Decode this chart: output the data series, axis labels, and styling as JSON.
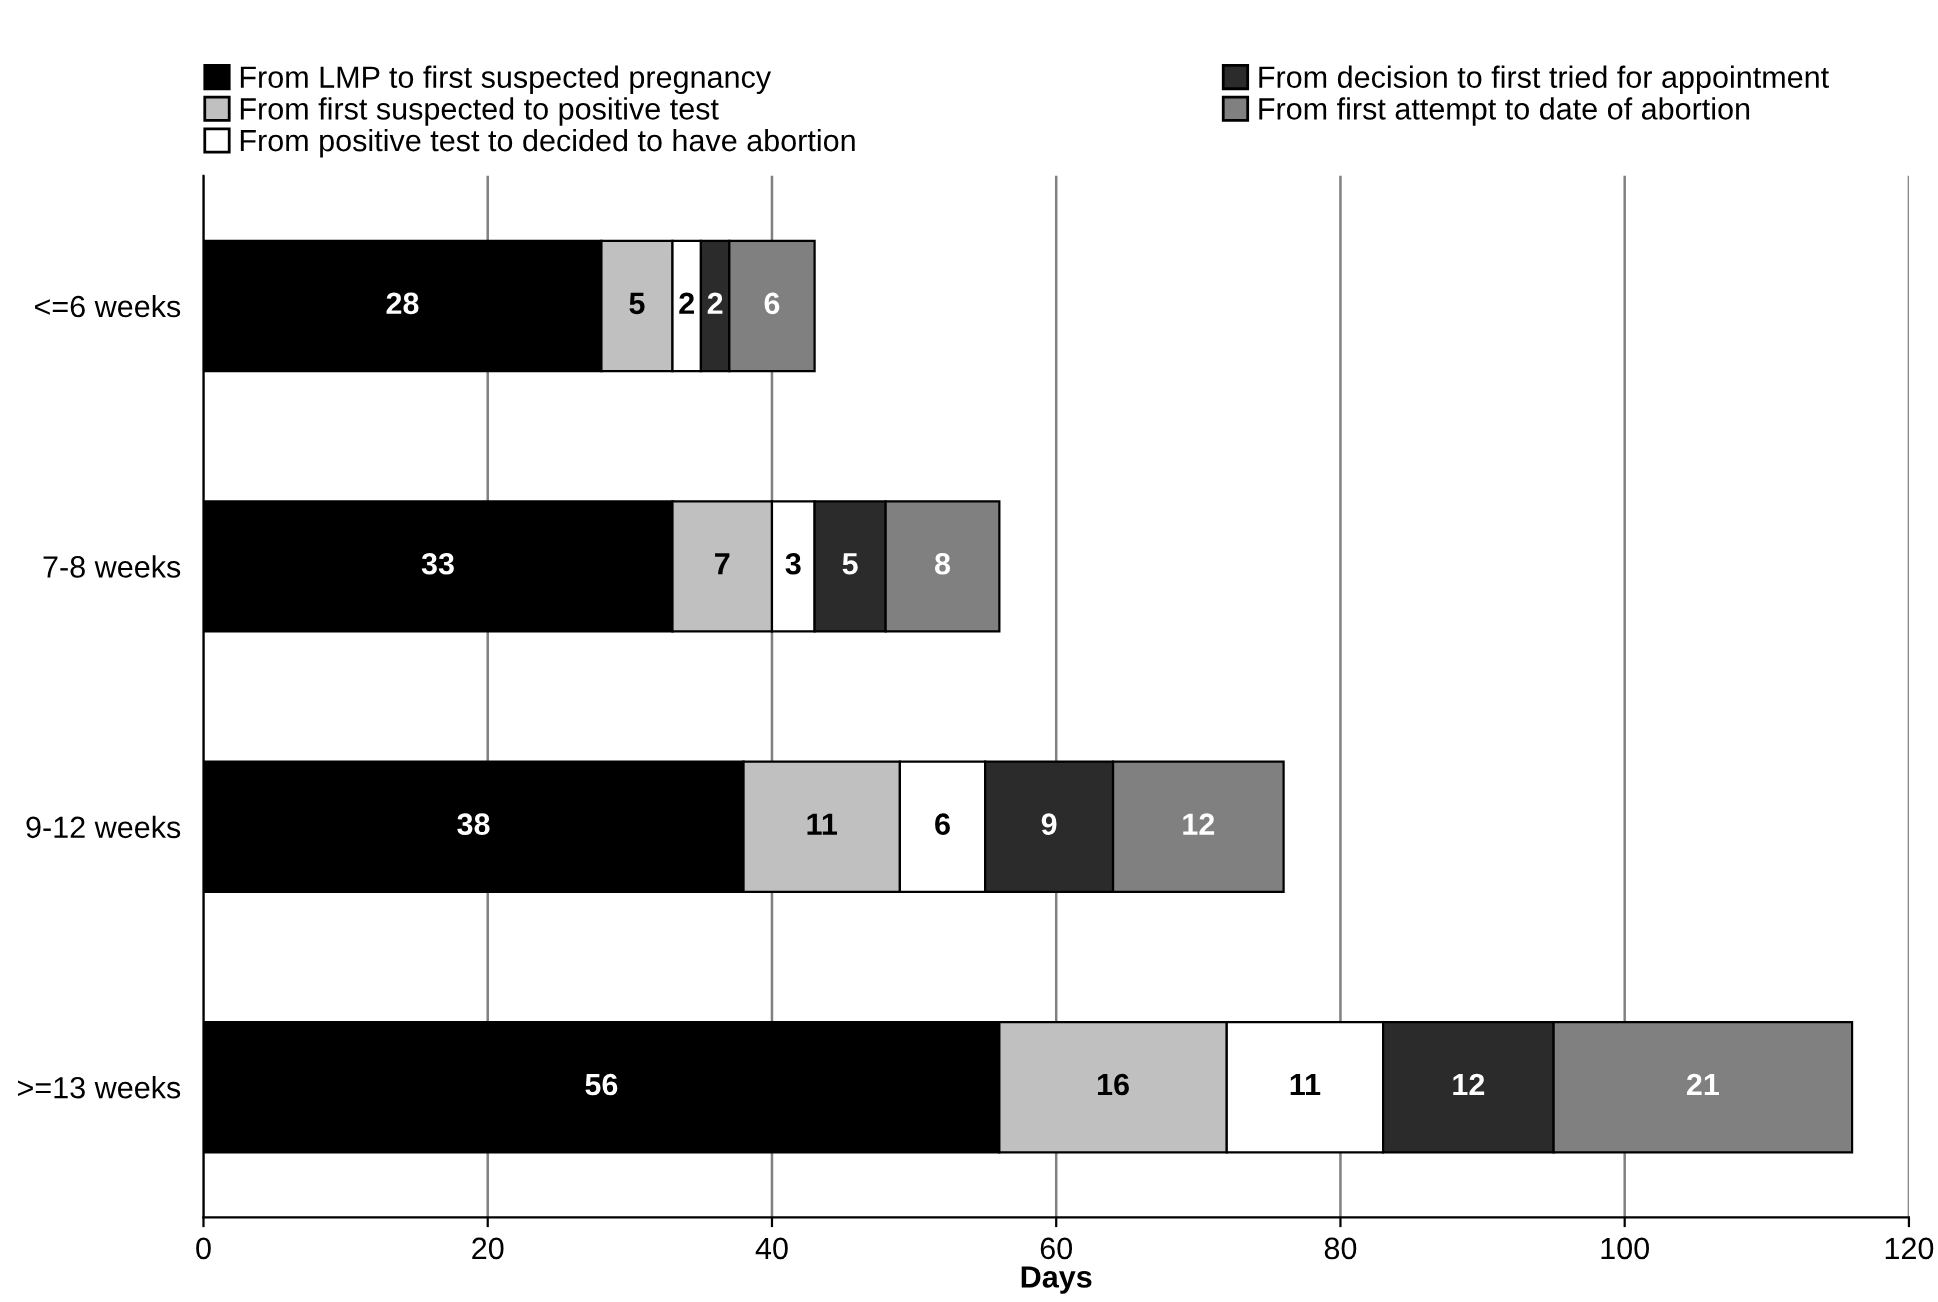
{
  "chart_data": {
    "type": "bar",
    "orientation": "horizontal",
    "stacked": true,
    "xlabel": "Days",
    "categories": [
      "<=6 weeks",
      "7-8 weeks",
      "9-12 weeks",
      ">=13 weeks"
    ],
    "series": [
      {
        "name": "From LMP to first suspected pregnancy",
        "color": "#000000",
        "values": [
          28,
          33,
          38,
          56
        ]
      },
      {
        "name": "From first suspected to positive test",
        "color": "#c0c0c0",
        "values": [
          5,
          7,
          11,
          16
        ]
      },
      {
        "name": "From positive test to decided to have abortion",
        "color": "#ffffff",
        "values": [
          2,
          3,
          6,
          11
        ]
      },
      {
        "name": "From decision to first tried for appointment",
        "color": "#2b2b2b",
        "values": [
          2,
          5,
          9,
          12
        ]
      },
      {
        "name": "From first attempt to date of abortion",
        "color": "#808080",
        "values": [
          6,
          8,
          12,
          21
        ]
      }
    ],
    "xlim": [
      0,
      120
    ],
    "xticks": [
      0,
      20,
      40,
      60,
      80,
      100,
      120
    ],
    "grid": "x",
    "legend": "top",
    "data_labels": true
  }
}
